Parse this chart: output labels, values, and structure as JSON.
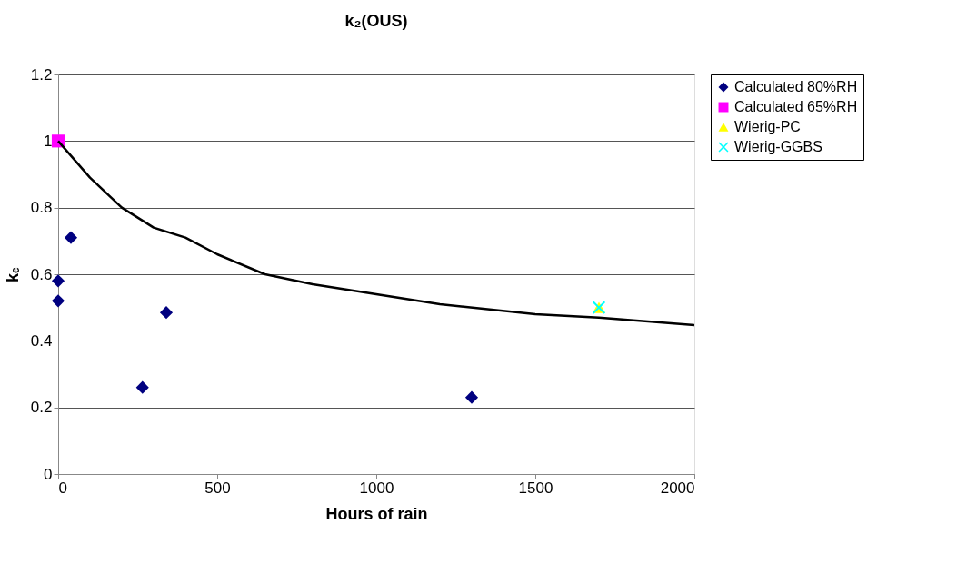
{
  "chart_data": {
    "type": "scatter",
    "title": "k₂(OUS)",
    "xlabel": "Hours of rain",
    "ylabel": "kₑ",
    "xlim": [
      0,
      2000
    ],
    "xticks": [
      0,
      500,
      1000,
      1500,
      2000
    ],
    "ylim": [
      0,
      1.2
    ],
    "yticks": [
      0,
      0.2,
      0.4,
      0.6,
      0.8,
      1,
      1.2
    ],
    "grid": "y",
    "legend": "right",
    "series": [
      {
        "name": "Calculated 80%RH",
        "color": "#000080",
        "marker": "diamond",
        "x": [
          0,
          0,
          40,
          265,
          340,
          1300
        ],
        "values": [
          0.58,
          0.52,
          0.71,
          0.26,
          0.485,
          0.23
        ]
      },
      {
        "name": "Calculated 65%RH",
        "color": "#ff00ff",
        "marker": "square",
        "x": [
          0
        ],
        "values": [
          1.0
        ]
      },
      {
        "name": "Wierig-PC",
        "color": "#ffff00",
        "marker": "triangle",
        "x": [
          1700
        ],
        "values": [
          0.5
        ]
      },
      {
        "name": "Wierig-GGBS",
        "color": "#00ffff",
        "marker": "cross",
        "x": [
          1700
        ],
        "values": [
          0.5
        ]
      },
      {
        "type": "line",
        "color": "#000000",
        "marker": "none",
        "x": [
          0,
          100,
          200,
          250,
          300,
          400,
          500,
          650,
          800,
          1000,
          1200,
          1500,
          1700,
          2000
        ],
        "values": [
          1.0,
          0.89,
          0.8,
          0.77,
          0.74,
          0.71,
          0.66,
          0.6,
          0.57,
          0.54,
          0.51,
          0.48,
          0.47,
          0.447
        ]
      }
    ]
  }
}
